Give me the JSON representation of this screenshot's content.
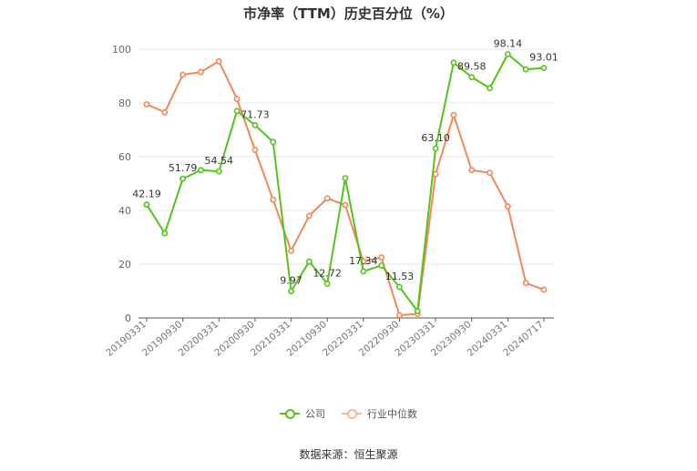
{
  "title": "市净率（TTM）历史百分位（%）",
  "source": "数据来源：恒生聚源",
  "legend": [
    {
      "name": "公司",
      "color": "#52c41a"
    },
    {
      "name": "行业中位数",
      "color": "#f4875a"
    }
  ],
  "chart_data": {
    "type": "line",
    "x": [
      "20190331",
      "20190630",
      "20190930",
      "20191231",
      "20200331",
      "20200630",
      "20200930",
      "20201231",
      "20210331",
      "20210630",
      "20210930",
      "20211231",
      "20220331",
      "20220630",
      "20220930",
      "20221231",
      "20230331",
      "20230630",
      "20230930",
      "20231231",
      "20240331",
      "20240630",
      "20240717"
    ],
    "x_tick_labels": [
      "20190331",
      "20190930",
      "20200331",
      "20200930",
      "20210331",
      "20210930",
      "20220331",
      "20220930",
      "20230331",
      "20230930",
      "20240331",
      "20240717"
    ],
    "ylim": [
      0,
      100
    ],
    "y_ticks": [
      0,
      20,
      40,
      60,
      80,
      100
    ],
    "grid": true,
    "legend_position": "bottom",
    "series": [
      {
        "name": "公司",
        "color": "#52c41a",
        "values": [
          42.19,
          31.5,
          51.79,
          55.0,
          54.54,
          77.0,
          71.73,
          65.5,
          9.97,
          21.0,
          12.72,
          52.0,
          17.34,
          19.5,
          11.53,
          2.5,
          63.1,
          95.0,
          89.58,
          85.5,
          98.14,
          92.5,
          93.01
        ],
        "labels": {
          "0": "42.19",
          "2": "51.79",
          "4": "54.54",
          "6": "71.73",
          "8": "9.97",
          "10": "12.72",
          "12": "17.34",
          "14": "11.53",
          "16": "63.10",
          "18": "89.58",
          "20": "98.14",
          "22": "93.01"
        }
      },
      {
        "name": "行业中位数",
        "color": "#f4875a",
        "values": [
          79.5,
          76.5,
          90.5,
          91.5,
          95.5,
          81.5,
          62.5,
          44.0,
          25.0,
          38.0,
          44.5,
          42.0,
          21.0,
          22.5,
          1.0,
          1.5,
          53.5,
          75.5,
          55.0,
          54.0,
          41.5,
          13.0,
          10.5
        ]
      }
    ]
  }
}
